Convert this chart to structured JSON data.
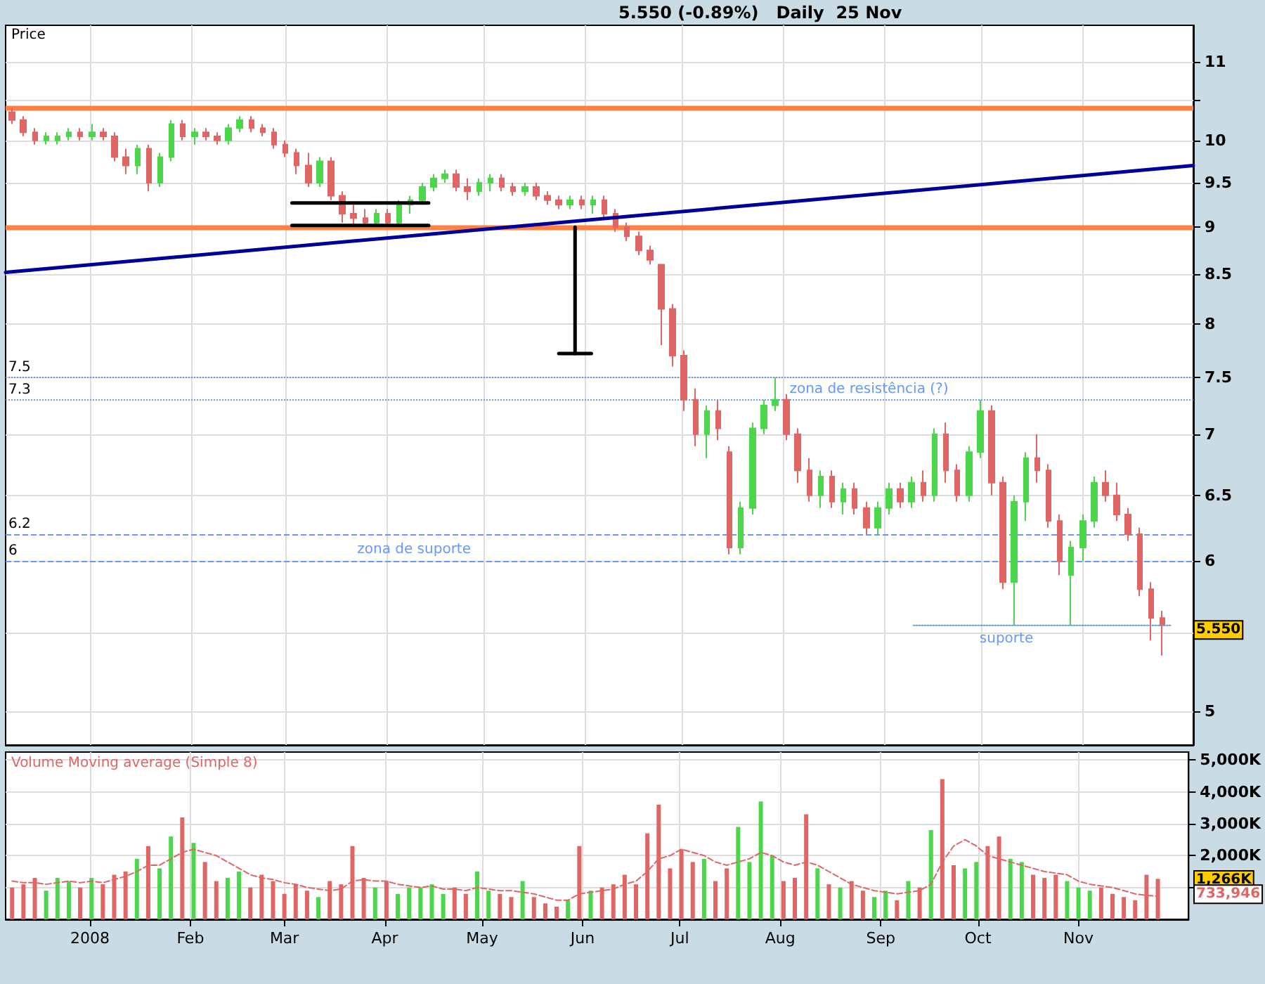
{
  "chart_data": [
    {
      "type": "candlestick",
      "title": "5.550 (-0.89%)   Daily  25 Nov",
      "ylabel": "Price",
      "log": true,
      "grid": true,
      "tick_labels": "y",
      "xlim": [
        "2007-12-06",
        "2008-12-05"
      ],
      "xticks": [
        {
          "value": "2008-01-01",
          "label": null
        },
        {
          "value": "2008-02-01",
          "label": null
        },
        {
          "value": "2008-03-01",
          "label": null
        },
        {
          "value": "2008-04-01",
          "label": null
        },
        {
          "value": "2008-05-01",
          "label": null
        },
        {
          "value": "2008-06-01",
          "label": null
        },
        {
          "value": "2008-07-01",
          "label": null
        },
        {
          "value": "2008-08-01",
          "label": null
        },
        {
          "value": "2008-09-01",
          "label": null
        },
        {
          "value": "2008-10-01",
          "label": null
        },
        {
          "value": "2008-11-01",
          "label": null
        }
      ],
      "ylim": [
        4.8,
        11.5
      ],
      "yticks": [
        5,
        {
          "value": 5.5,
          "label": null
        },
        6,
        6.5,
        7,
        7.5,
        8,
        8.5,
        9,
        9.5,
        10,
        {
          "value": 10.5,
          "label": null
        },
        11
      ],
      "x": [
        "2007-12-08T00:00",
        "2007-12-11T12:00",
        "2007-12-15T00:00",
        "2007-12-18T12:00",
        "2007-12-22T00:00",
        "2007-12-25T12:00",
        "2007-12-29T00:00",
        "2008-01-01T12:00",
        "2008-01-05T00:00",
        "2008-01-08T12:00",
        "2008-01-12T00:00",
        "2008-01-15T12:00",
        "2008-01-19T00:00",
        "2008-01-22T12:00",
        "2008-01-26T00:00",
        "2008-01-29T12:00",
        "2008-02-02T00:00",
        "2008-02-05T12:00",
        "2008-02-09T00:00",
        "2008-02-12T12:00",
        "2008-02-16T00:00",
        "2008-02-19T12:00",
        "2008-02-23T00:00",
        "2008-02-26T12:00",
        "2008-03-01T00:00",
        "2008-03-04T12:00",
        "2008-03-08T00:00",
        "2008-03-11T12:00",
        "2008-03-15T00:00",
        "2008-03-18T12:00",
        "2008-03-22T00:00",
        "2008-03-25T12:00",
        "2008-03-29T00:00",
        "2008-04-01T12:00",
        "2008-04-05T00:00",
        "2008-04-08T12:00",
        "2008-04-12T00:00",
        "2008-04-15T12:00",
        "2008-04-19T00:00",
        "2008-04-22T12:00",
        "2008-04-26T00:00",
        "2008-04-29T12:00",
        "2008-05-03T00:00",
        "2008-05-06T12:00",
        "2008-05-10T00:00",
        "2008-05-13T12:00",
        "2008-05-17T00:00",
        "2008-05-20T12:00",
        "2008-05-24T00:00",
        "2008-05-27T12:00",
        "2008-05-31T00:00",
        "2008-06-03T12:00",
        "2008-06-07T00:00",
        "2008-06-10T12:00",
        "2008-06-14T00:00",
        "2008-06-17T12:00",
        "2008-06-21T00:00",
        "2008-06-24T12:00",
        "2008-06-28T00:00",
        "2008-07-01T12:00",
        "2008-07-05T00:00",
        "2008-07-08T12:00",
        "2008-07-12T00:00",
        "2008-07-15T12:00",
        "2008-07-19T00:00",
        "2008-07-22T12:00",
        "2008-07-26T00:00",
        "2008-07-29T12:00",
        "2008-08-02T00:00",
        "2008-08-05T12:00",
        "2008-08-09T00:00",
        "2008-08-12T12:00",
        "2008-08-16T00:00",
        "2008-08-19T12:00",
        "2008-08-23T00:00",
        "2008-08-26T12:00",
        "2008-08-30T00:00",
        "2008-09-02T12:00",
        "2008-09-06T00:00",
        "2008-09-09T12:00",
        "2008-09-13T00:00",
        "2008-09-16T12:00",
        "2008-09-20T00:00",
        "2008-09-23T12:00",
        "2008-09-27T00:00",
        "2008-09-30T12:00",
        "2008-10-04T00:00",
        "2008-10-07T12:00",
        "2008-10-11T00:00",
        "2008-10-14T12:00",
        "2008-10-18T00:00",
        "2008-10-21T12:00",
        "2008-10-25T00:00",
        "2008-10-28T12:00",
        "2008-11-01T00:00",
        "2008-11-04T12:00",
        "2008-11-08T00:00",
        "2008-11-11T12:00",
        "2008-11-15T00:00",
        "2008-11-18T12:00",
        "2008-11-22T00:00",
        "2008-11-25T12:00"
      ],
      "ohlc": [
        [
          10.35,
          10.4,
          10.2,
          10.25
        ],
        [
          10.25,
          10.3,
          10.05,
          10.1
        ],
        [
          10.1,
          10.15,
          9.95,
          10.0
        ],
        [
          10.0,
          10.1,
          9.95,
          10.05
        ],
        [
          10.0,
          10.1,
          9.95,
          10.05
        ],
        [
          10.05,
          10.15,
          10.0,
          10.1
        ],
        [
          10.1,
          10.15,
          10.0,
          10.05
        ],
        [
          10.05,
          10.2,
          10.0,
          10.1
        ],
        [
          10.1,
          10.15,
          10.0,
          10.05
        ],
        [
          10.05,
          10.1,
          9.75,
          9.8
        ],
        [
          9.8,
          9.9,
          9.6,
          9.7
        ],
        [
          9.7,
          9.95,
          9.6,
          9.9
        ],
        [
          9.9,
          9.95,
          9.4,
          9.5
        ],
        [
          9.5,
          9.85,
          9.45,
          9.8
        ],
        [
          9.8,
          10.25,
          9.75,
          10.2
        ],
        [
          10.2,
          10.25,
          10.0,
          10.05
        ],
        [
          10.05,
          10.15,
          9.95,
          10.1
        ],
        [
          10.1,
          10.15,
          10.0,
          10.05
        ],
        [
          10.05,
          10.1,
          9.95,
          10.0
        ],
        [
          10.0,
          10.2,
          9.95,
          10.15
        ],
        [
          10.15,
          10.3,
          10.1,
          10.25
        ],
        [
          10.25,
          10.3,
          10.1,
          10.15
        ],
        [
          10.15,
          10.2,
          10.05,
          10.1
        ],
        [
          10.1,
          10.15,
          9.9,
          9.95
        ],
        [
          9.95,
          10.0,
          9.8,
          9.85
        ],
        [
          9.85,
          9.9,
          9.6,
          9.7
        ],
        [
          9.7,
          9.85,
          9.45,
          9.5
        ],
        [
          9.5,
          9.8,
          9.45,
          9.75
        ],
        [
          9.75,
          9.8,
          9.3,
          9.35
        ],
        [
          9.35,
          9.4,
          9.05,
          9.15
        ],
        [
          9.15,
          9.25,
          9.0,
          9.1
        ],
        [
          9.1,
          9.2,
          9.0,
          9.05
        ],
        [
          9.05,
          9.2,
          9.0,
          9.15
        ],
        [
          9.15,
          9.2,
          9.0,
          9.05
        ],
        [
          9.05,
          9.3,
          9.0,
          9.25
        ],
        [
          9.25,
          9.35,
          9.15,
          9.3
        ],
        [
          9.3,
          9.5,
          9.25,
          9.45
        ],
        [
          9.45,
          9.6,
          9.4,
          9.55
        ],
        [
          9.55,
          9.65,
          9.5,
          9.6
        ],
        [
          9.6,
          9.65,
          9.4,
          9.45
        ],
        [
          9.45,
          9.55,
          9.3,
          9.4
        ],
        [
          9.4,
          9.55,
          9.35,
          9.5
        ],
        [
          9.5,
          9.6,
          9.4,
          9.55
        ],
        [
          9.55,
          9.6,
          9.4,
          9.45
        ],
        [
          9.45,
          9.5,
          9.35,
          9.4
        ],
        [
          9.4,
          9.5,
          9.35,
          9.45
        ],
        [
          9.45,
          9.5,
          9.3,
          9.35
        ],
        [
          9.35,
          9.4,
          9.25,
          9.3
        ],
        [
          9.3,
          9.35,
          9.2,
          9.25
        ],
        [
          9.25,
          9.35,
          9.2,
          9.3
        ],
        [
          9.3,
          9.35,
          9.2,
          9.25
        ],
        [
          9.25,
          9.35,
          9.15,
          9.3
        ],
        [
          9.3,
          9.35,
          9.1,
          9.15
        ],
        [
          9.15,
          9.2,
          8.95,
          9.0
        ],
        [
          9.0,
          9.05,
          8.85,
          8.9
        ],
        [
          8.9,
          8.95,
          8.7,
          8.75
        ],
        [
          8.75,
          8.8,
          8.6,
          8.65
        ],
        [
          8.6,
          8.6,
          7.8,
          8.15
        ],
        [
          8.15,
          8.2,
          7.6,
          7.7
        ],
        [
          7.7,
          7.75,
          7.2,
          7.3
        ],
        [
          7.3,
          7.4,
          6.9,
          7.0
        ],
        [
          7.0,
          7.25,
          6.8,
          7.2
        ],
        [
          7.2,
          7.3,
          6.95,
          7.05
        ],
        [
          6.85,
          6.9,
          6.05,
          6.1
        ],
        [
          6.1,
          6.45,
          6.05,
          6.4
        ],
        [
          6.4,
          7.1,
          6.35,
          7.05
        ],
        [
          7.05,
          7.3,
          7.0,
          7.25
        ],
        [
          7.25,
          7.5,
          7.2,
          7.3
        ],
        [
          7.3,
          7.35,
          6.95,
          7.0
        ],
        [
          7.0,
          7.05,
          6.6,
          6.7
        ],
        [
          6.7,
          6.8,
          6.45,
          6.5
        ],
        [
          6.5,
          6.7,
          6.4,
          6.65
        ],
        [
          6.65,
          6.7,
          6.4,
          6.45
        ],
        [
          6.45,
          6.6,
          6.35,
          6.55
        ],
        [
          6.55,
          6.6,
          6.35,
          6.4
        ],
        [
          6.4,
          6.45,
          6.2,
          6.25
        ],
        [
          6.25,
          6.45,
          6.2,
          6.4
        ],
        [
          6.4,
          6.6,
          6.35,
          6.55
        ],
        [
          6.55,
          6.6,
          6.4,
          6.45
        ],
        [
          6.45,
          6.65,
          6.4,
          6.6
        ],
        [
          6.6,
          6.7,
          6.45,
          6.5
        ],
        [
          6.5,
          7.05,
          6.45,
          7.0
        ],
        [
          7.0,
          7.1,
          6.6,
          6.7
        ],
        [
          6.7,
          6.75,
          6.45,
          6.5
        ],
        [
          6.5,
          6.9,
          6.45,
          6.85
        ],
        [
          6.85,
          7.3,
          6.8,
          7.2
        ],
        [
          7.2,
          7.25,
          6.5,
          6.6
        ],
        [
          6.6,
          6.65,
          5.8,
          5.85
        ],
        [
          5.85,
          6.5,
          5.55,
          6.45
        ],
        [
          6.45,
          6.85,
          6.3,
          6.8
        ],
        [
          6.8,
          7.0,
          6.6,
          6.7
        ],
        [
          6.7,
          6.75,
          6.25,
          6.3
        ],
        [
          6.3,
          6.35,
          5.9,
          6.0
        ],
        [
          5.9,
          6.15,
          5.55,
          6.1
        ],
        [
          6.1,
          6.35,
          6.0,
          6.3
        ],
        [
          6.3,
          6.65,
          6.25,
          6.6
        ],
        [
          6.6,
          6.7,
          6.45,
          6.5
        ],
        [
          6.5,
          6.6,
          6.3,
          6.35
        ],
        [
          6.35,
          6.4,
          6.15,
          6.2
        ],
        [
          6.2,
          6.25,
          5.75,
          5.8
        ],
        [
          5.8,
          5.85,
          5.45,
          5.6
        ],
        [
          5.6,
          5.65,
          5.35,
          5.55
        ]
      ],
      "colors": [
        "#e06666",
        "#e06666",
        "#e06666",
        "#4cd64c",
        "#4cd64c",
        "#4cd64c",
        "#e06666",
        "#4cd64c",
        "#e06666",
        "#e06666",
        "#e06666",
        "#4cd64c",
        "#e06666",
        "#4cd64c",
        "#4cd64c",
        "#e06666",
        "#4cd64c",
        "#e06666",
        "#e06666",
        "#4cd64c",
        "#4cd64c",
        "#e06666",
        "#e06666",
        "#e06666",
        "#e06666",
        "#e06666",
        "#e06666",
        "#4cd64c",
        "#e06666",
        "#e06666",
        "#e06666",
        "#e06666",
        "#4cd64c",
        "#e06666",
        "#4cd64c",
        "#4cd64c",
        "#4cd64c",
        "#4cd64c",
        "#4cd64c",
        "#e06666",
        "#e06666",
        "#4cd64c",
        "#4cd64c",
        "#e06666",
        "#e06666",
        "#4cd64c",
        "#e06666",
        "#e06666",
        "#e06666",
        "#4cd64c",
        "#e06666",
        "#4cd64c",
        "#e06666",
        "#e06666",
        "#e06666",
        "#e06666",
        "#e06666",
        "#e06666",
        "#e06666",
        "#e06666",
        "#e06666",
        "#4cd64c",
        "#e06666",
        "#e06666",
        "#4cd64c",
        "#4cd64c",
        "#4cd64c",
        "#4cd64c",
        "#e06666",
        "#e06666",
        "#e06666",
        "#4cd64c",
        "#e06666",
        "#4cd64c",
        "#e06666",
        "#e06666",
        "#4cd64c",
        "#4cd64c",
        "#e06666",
        "#4cd64c",
        "#e06666",
        "#4cd64c",
        "#e06666",
        "#e06666",
        "#4cd64c",
        "#4cd64c",
        "#e06666",
        "#e06666",
        "#4cd64c",
        "#4cd64c",
        "#e06666",
        "#e06666",
        "#e06666",
        "#4cd64c",
        "#4cd64c",
        "#4cd64c",
        "#e06666",
        "#e06666",
        "#e06666",
        "#e06666",
        "#e06666",
        "#e06666"
      ],
      "series": [
        {
          "type": "line",
          "x": [
            "2007-12-06",
            "2008-12-05"
          ],
          "values": [
            8.52,
            9.7
          ],
          "color": "#000099",
          "line_style": "solid"
        },
        {
          "type": "line",
          "x": [
            "2008-03-03",
            "2008-04-14"
          ],
          "values": [
            9.27,
            9.27
          ],
          "color": "#000000",
          "line_style": "solid"
        },
        {
          "type": "line",
          "x": [
            "2008-03-03",
            "2008-04-14"
          ],
          "values": [
            9.02,
            9.02
          ],
          "color": "#000000",
          "line_style": "solid"
        },
        {
          "type": "line",
          "x": [
            "2008-05-29",
            "2008-05-29"
          ],
          "values": [
            9.0,
            7.72
          ],
          "color": "#000000",
          "line_style": "solid"
        },
        {
          "type": "line",
          "x": [
            "2008-05-24",
            "2008-06-03"
          ],
          "values": [
            7.72,
            7.72
          ],
          "color": "#000000",
          "line_style": "solid"
        },
        {
          "type": "line",
          "x": [
            "2008-09-10",
            "2008-11-28"
          ],
          "values": [
            5.55,
            5.55
          ],
          "color": "#6699ff",
          "line_style": "dotted"
        }
      ],
      "ref_lines": [
        {
          "axis": "y",
          "value": 10.4,
          "color": "#ff8040"
        },
        {
          "axis": "y",
          "value": 9.0,
          "color": "#ff8040"
        },
        {
          "axis": "y",
          "value": 7.5,
          "label": "7.5",
          "color": "#6699ff",
          "line_style": "dotted"
        },
        {
          "axis": "y",
          "value": 7.3,
          "label": "7.3",
          "color": "#6699ff",
          "line_style": "dotted"
        },
        {
          "axis": "y",
          "value": 6.2,
          "label": "6.2",
          "color": "#6699ff",
          "line_style": "dashed"
        },
        {
          "axis": "y",
          "value": 6.0,
          "label": "6",
          "color": "#6699ff",
          "line_style": "dashed"
        }
      ],
      "annotations": [
        "zona de resistência (?)",
        "zona de suporte",
        "suporte",
        "5.550"
      ]
    },
    {
      "type": "bar",
      "title": "Volume Moving average (Simple 8)",
      "grid": true,
      "xlim": [
        "2007-12-06",
        "2008-12-05"
      ],
      "xticks": [
        {
          "value": "2008-01-01",
          "label": "2008"
        },
        {
          "value": "2008-02-01",
          "label": "Feb"
        },
        {
          "value": "2008-03-01",
          "label": "Mar"
        },
        {
          "value": "2008-04-01",
          "label": "Apr"
        },
        {
          "value": "2008-05-01",
          "label": "May"
        },
        {
          "value": "2008-06-01",
          "label": "Jun"
        },
        {
          "value": "2008-07-01",
          "label": "Jul"
        },
        {
          "value": "2008-08-01",
          "label": "Aug"
        },
        {
          "value": "2008-09-01",
          "label": "Sep"
        },
        {
          "value": "2008-10-01",
          "label": "Oct"
        },
        {
          "value": "2008-11-01",
          "label": "Nov"
        }
      ],
      "ylim": [
        0,
        5250
      ],
      "yticks": [
        {
          "value": 1000,
          "label": null
        },
        {
          "value": 2000,
          "label": "2,000K"
        },
        {
          "value": 3000,
          "label": "3,000K"
        },
        {
          "value": 4000,
          "label": "4,000K"
        },
        {
          "value": 5000,
          "label": "5,000K"
        }
      ],
      "x": [
        "2007-12-08T00:00",
        "2007-12-11T12:00",
        "2007-12-15T00:00",
        "2007-12-18T12:00",
        "2007-12-22T00:00",
        "2007-12-25T12:00",
        "2007-12-29T00:00",
        "2008-01-01T12:00",
        "2008-01-05T00:00",
        "2008-01-08T12:00",
        "2008-01-12T00:00",
        "2008-01-15T12:00",
        "2008-01-19T00:00",
        "2008-01-22T12:00",
        "2008-01-26T00:00",
        "2008-01-29T12:00",
        "2008-02-02T00:00",
        "2008-02-05T12:00",
        "2008-02-09T00:00",
        "2008-02-12T12:00",
        "2008-02-16T00:00",
        "2008-02-19T12:00",
        "2008-02-23T00:00",
        "2008-02-26T12:00",
        "2008-03-01T00:00",
        "2008-03-04T12:00",
        "2008-03-08T00:00",
        "2008-03-11T12:00",
        "2008-03-15T00:00",
        "2008-03-18T12:00",
        "2008-03-22T00:00",
        "2008-03-25T12:00",
        "2008-03-29T00:00",
        "2008-04-01T12:00",
        "2008-04-05T00:00",
        "2008-04-08T12:00",
        "2008-04-12T00:00",
        "2008-04-15T12:00",
        "2008-04-19T00:00",
        "2008-04-22T12:00",
        "2008-04-26T00:00",
        "2008-04-29T12:00",
        "2008-05-03T00:00",
        "2008-05-06T12:00",
        "2008-05-10T00:00",
        "2008-05-13T12:00",
        "2008-05-17T00:00",
        "2008-05-20T12:00",
        "2008-05-24T00:00",
        "2008-05-27T12:00",
        "2008-05-31T00:00",
        "2008-06-03T12:00",
        "2008-06-07T00:00",
        "2008-06-10T12:00",
        "2008-06-14T00:00",
        "2008-06-17T12:00",
        "2008-06-21T00:00",
        "2008-06-24T12:00",
        "2008-06-28T00:00",
        "2008-07-01T12:00",
        "2008-07-05T00:00",
        "2008-07-08T12:00",
        "2008-07-12T00:00",
        "2008-07-15T12:00",
        "2008-07-19T00:00",
        "2008-07-22T12:00",
        "2008-07-26T00:00",
        "2008-07-29T12:00",
        "2008-08-02T00:00",
        "2008-08-05T12:00",
        "2008-08-09T00:00",
        "2008-08-12T12:00",
        "2008-08-16T00:00",
        "2008-08-19T12:00",
        "2008-08-23T00:00",
        "2008-08-26T12:00",
        "2008-08-30T00:00",
        "2008-09-02T12:00",
        "2008-09-06T00:00",
        "2008-09-09T12:00",
        "2008-09-13T00:00",
        "2008-09-16T12:00",
        "2008-09-20T00:00",
        "2008-09-23T12:00",
        "2008-09-27T00:00",
        "2008-09-30T12:00",
        "2008-10-04T00:00",
        "2008-10-07T12:00",
        "2008-10-11T00:00",
        "2008-10-14T12:00",
        "2008-10-18T00:00",
        "2008-10-21T12:00",
        "2008-10-25T00:00",
        "2008-10-28T12:00",
        "2008-11-01T00:00",
        "2008-11-04T12:00",
        "2008-11-08T00:00",
        "2008-11-11T12:00",
        "2008-11-15T00:00",
        "2008-11-18T12:00",
        "2008-11-22T00:00",
        "2008-11-25T12:00"
      ],
      "series": [
        {
          "values": [
            1000,
            1100,
            1300,
            900,
            1300,
            1200,
            1000,
            1300,
            1100,
            1400,
            1500,
            1900,
            2300,
            1600,
            2600,
            3200,
            2400,
            1800,
            1200,
            1300,
            1500,
            1000,
            1400,
            1200,
            800,
            1100,
            900,
            700,
            1200,
            1100,
            2300,
            1300,
            1000,
            1200,
            800,
            1000,
            1000,
            1100,
            800,
            1000,
            800,
            1500,
            900,
            800,
            700,
            1200,
            700,
            500,
            400,
            600,
            2300,
            900,
            1000,
            1100,
            1400,
            1100,
            2700,
            3600,
            1600,
            2200,
            1800,
            1900,
            1200,
            1600,
            2900,
            1800,
            3700,
            2000,
            1200,
            1300,
            3300,
            1600,
            1100,
            1000,
            1200,
            900,
            700,
            900,
            600,
            1200,
            1000,
            2800,
            4400,
            1700,
            1600,
            1800,
            2300,
            2600,
            1900,
            1800,
            1400,
            1300,
            1400,
            1200,
            1000,
            900,
            1000,
            800,
            700,
            600,
            1400,
            1270
          ],
          "colors": [
            "#e06666",
            "#e06666",
            "#e06666",
            "#4cd64c",
            "#4cd64c",
            "#4cd64c",
            "#e06666",
            "#4cd64c",
            "#e06666",
            "#e06666",
            "#e06666",
            "#4cd64c",
            "#e06666",
            "#4cd64c",
            "#4cd64c",
            "#e06666",
            "#4cd64c",
            "#e06666",
            "#e06666",
            "#4cd64c",
            "#4cd64c",
            "#e06666",
            "#e06666",
            "#e06666",
            "#e06666",
            "#e06666",
            "#e06666",
            "#4cd64c",
            "#e06666",
            "#e06666",
            "#e06666",
            "#e06666",
            "#4cd64c",
            "#e06666",
            "#4cd64c",
            "#4cd64c",
            "#4cd64c",
            "#4cd64c",
            "#4cd64c",
            "#e06666",
            "#e06666",
            "#4cd64c",
            "#4cd64c",
            "#e06666",
            "#e06666",
            "#4cd64c",
            "#e06666",
            "#e06666",
            "#e06666",
            "#4cd64c",
            "#e06666",
            "#4cd64c",
            "#e06666",
            "#e06666",
            "#e06666",
            "#e06666",
            "#e06666",
            "#e06666",
            "#e06666",
            "#e06666",
            "#e06666",
            "#4cd64c",
            "#e06666",
            "#e06666",
            "#4cd64c",
            "#4cd64c",
            "#4cd64c",
            "#4cd64c",
            "#e06666",
            "#e06666",
            "#e06666",
            "#4cd64c",
            "#e06666",
            "#4cd64c",
            "#e06666",
            "#e06666",
            "#4cd64c",
            "#4cd64c",
            "#e06666",
            "#4cd64c",
            "#e06666",
            "#4cd64c",
            "#e06666",
            "#e06666",
            "#4cd64c",
            "#4cd64c",
            "#e06666",
            "#e06666",
            "#4cd64c",
            "#4cd64c",
            "#e06666",
            "#e06666",
            "#e06666",
            "#4cd64c",
            "#4cd64c",
            "#4cd64c",
            "#e06666",
            "#e06666",
            "#e06666",
            "#e06666",
            "#e06666",
            "#e06666"
          ]
        },
        {
          "type": "line",
          "color": "#e06666",
          "line_style": "dashed",
          "values": [
            1200,
            1150,
            1150,
            1100,
            1150,
            1200,
            1150,
            1200,
            1150,
            1250,
            1350,
            1500,
            1700,
            1700,
            1900,
            2100,
            2200,
            2100,
            2000,
            1800,
            1600,
            1400,
            1300,
            1250,
            1150,
            1100,
            1000,
            950,
            900,
            950,
            1200,
            1250,
            1200,
            1200,
            1100,
            1050,
            1000,
            1050,
            950,
            950,
            900,
            1000,
            950,
            900,
            900,
            850,
            800,
            700,
            600,
            600,
            800,
            850,
            900,
            950,
            1100,
            1200,
            1500,
            1900,
            2000,
            2200,
            2100,
            2000,
            1800,
            1700,
            1800,
            1900,
            2100,
            2000,
            1800,
            1700,
            1800,
            1700,
            1500,
            1300,
            1100,
            1000,
            900,
            850,
            800,
            850,
            900,
            1100,
            1800,
            2300,
            2500,
            2300,
            2000,
            1900,
            1800,
            1700,
            1600,
            1500,
            1450,
            1400,
            1200,
            1100,
            1050,
            1000,
            900,
            800,
            750,
            730
          ]
        }
      ],
      "annotations": [
        "1,266K",
        "733,946"
      ]
    }
  ]
}
